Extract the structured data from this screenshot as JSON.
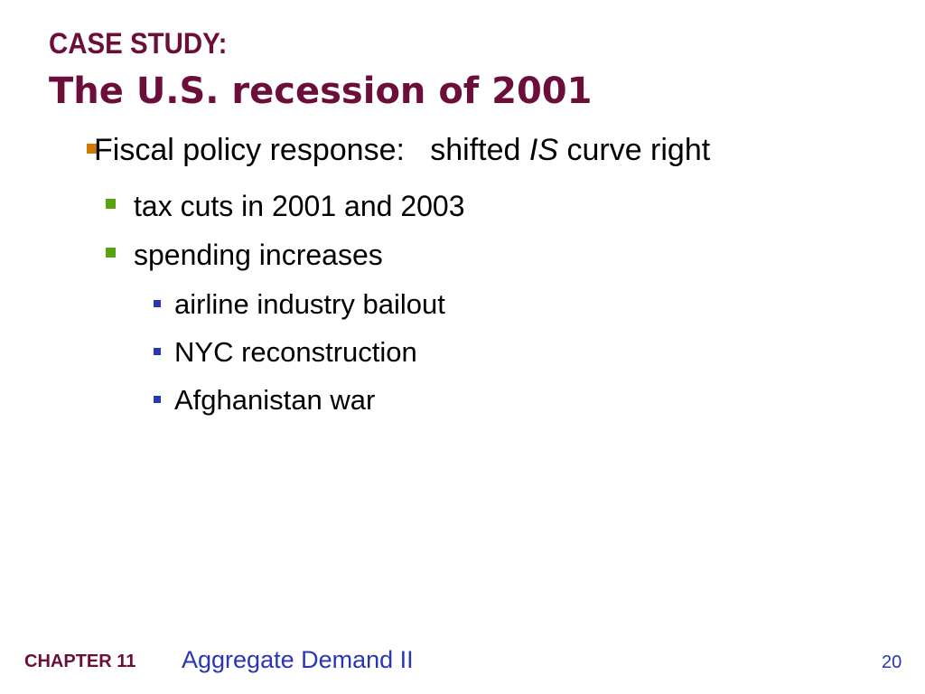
{
  "slide": {
    "title_line1": "CASE STUDY:",
    "title_line2": "The U.S. recession of 2001",
    "bullet1": {
      "lead": "Fiscal policy response:   shifted ",
      "italic": "IS",
      "tail": " curve right"
    },
    "sub_bullets": [
      "tax cuts in 2001 and 2003",
      "spending increases"
    ],
    "sub_sub_bullets": [
      "airline industry bailout",
      "NYC reconstruction",
      "Afghanistan war"
    ]
  },
  "footer": {
    "chapter": "CHAPTER 11",
    "chapter_title": "Aggregate Demand II",
    "page_number": "20"
  },
  "colors": {
    "title": "#6b0f3a",
    "bullet_level1": "#d07a00",
    "bullet_level2": "#57a312",
    "bullet_level3": "#2a35b8",
    "footer_text": "#2a35b8"
  }
}
